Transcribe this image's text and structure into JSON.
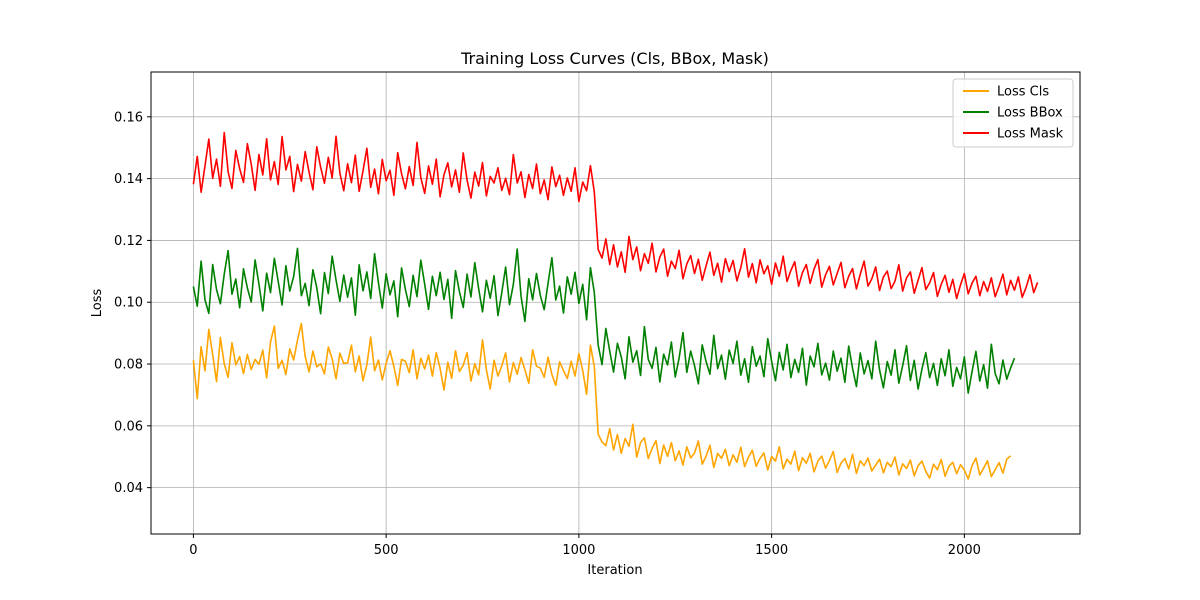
{
  "chart_data": {
    "type": "line",
    "title": "Training Loss Curves (Cls, BBox, Mask)",
    "xlabel": "Iteration",
    "ylabel": "Loss",
    "xlim": [
      -110,
      2300
    ],
    "ylim": [
      0.025,
      0.1745
    ],
    "xticks": [
      0,
      500,
      1000,
      1500,
      2000
    ],
    "yticks": [
      0.04,
      0.06,
      0.08,
      0.1,
      0.12,
      0.14,
      0.16
    ],
    "ytick_labels": [
      "0.04",
      "0.06",
      "0.08",
      "0.10",
      "0.12",
      "0.14",
      "0.16"
    ],
    "grid": true,
    "legend_position": "top-right",
    "x_step": 10,
    "series": [
      {
        "name": "Loss Cls",
        "color": "#ffa500",
        "values": [
          0.0812,
          0.0688,
          0.0856,
          0.0778,
          0.0912,
          0.0831,
          0.0743,
          0.0886,
          0.0801,
          0.0757,
          0.0869,
          0.0797,
          0.0824,
          0.0769,
          0.0831,
          0.0782,
          0.0815,
          0.0799,
          0.0845,
          0.0755,
          0.0871,
          0.0923,
          0.0786,
          0.0812,
          0.0766,
          0.0849,
          0.0813,
          0.0877,
          0.0931,
          0.0824,
          0.0775,
          0.0842,
          0.0791,
          0.0801,
          0.0768,
          0.0855,
          0.0817,
          0.0752,
          0.0835,
          0.0802,
          0.0804,
          0.0861,
          0.0775,
          0.0826,
          0.0746,
          0.0798,
          0.0887,
          0.0778,
          0.0813,
          0.0749,
          0.0802,
          0.0843,
          0.0792,
          0.0731,
          0.0815,
          0.0809,
          0.0772,
          0.0846,
          0.0752,
          0.0819,
          0.0784,
          0.0829,
          0.0761,
          0.0837,
          0.0786,
          0.0716,
          0.0806,
          0.0754,
          0.0843,
          0.0776,
          0.0796,
          0.0837,
          0.0745,
          0.0801,
          0.0765,
          0.0878,
          0.0782,
          0.0719,
          0.0812,
          0.0761,
          0.0794,
          0.0836,
          0.0742,
          0.0805,
          0.0767,
          0.0821,
          0.0781,
          0.0738,
          0.0846,
          0.0793,
          0.0787,
          0.0757,
          0.0822,
          0.0766,
          0.0731,
          0.0807,
          0.0779,
          0.0753,
          0.0809,
          0.0761,
          0.0834,
          0.0779,
          0.0702,
          0.0861,
          0.0792,
          0.0573,
          0.0548,
          0.0536,
          0.0591,
          0.0522,
          0.0572,
          0.0511,
          0.0559,
          0.0534,
          0.0605,
          0.0499,
          0.0546,
          0.0561,
          0.0494,
          0.0527,
          0.0552,
          0.0478,
          0.0538,
          0.0501,
          0.0546,
          0.0487,
          0.0519,
          0.0473,
          0.0532,
          0.0496,
          0.0512,
          0.0551,
          0.0476,
          0.0502,
          0.0537,
          0.0465,
          0.0511,
          0.0495,
          0.0524,
          0.0471,
          0.0506,
          0.0482,
          0.0531,
          0.0468,
          0.0499,
          0.0521,
          0.0469,
          0.0495,
          0.0512,
          0.0457,
          0.0501,
          0.0486,
          0.0532,
          0.0461,
          0.0492,
          0.0476,
          0.0518,
          0.0455,
          0.0497,
          0.0479,
          0.0511,
          0.0451,
          0.0486,
          0.0502,
          0.0463,
          0.0488,
          0.0517,
          0.0449,
          0.0479,
          0.0494,
          0.0461,
          0.0508,
          0.0446,
          0.0487,
          0.0471,
          0.0496,
          0.0454,
          0.0473,
          0.0492,
          0.0448,
          0.0482,
          0.0468,
          0.0499,
          0.0441,
          0.0477,
          0.0462,
          0.0489,
          0.0438,
          0.0471,
          0.0486,
          0.0452,
          0.0431,
          0.0476,
          0.0458,
          0.0491,
          0.0437,
          0.0469,
          0.0482,
          0.0445,
          0.0474,
          0.0457,
          0.0428,
          0.0471,
          0.0496,
          0.0441,
          0.0463,
          0.0487,
          0.0436,
          0.0458,
          0.0481,
          0.0447,
          0.0492,
          0.0503
        ]
      },
      {
        "name": "Loss BBox",
        "color": "#008000",
        "values": [
          0.1051,
          0.0987,
          0.1133,
          0.1008,
          0.0964,
          0.1122,
          0.1041,
          0.0995,
          0.1091,
          0.1167,
          0.1026,
          0.1075,
          0.0982,
          0.1108,
          0.1046,
          0.1001,
          0.1137,
          0.1059,
          0.0972,
          0.1094,
          0.1031,
          0.1142,
          0.1067,
          0.0991,
          0.1118,
          0.1036,
          0.1083,
          0.1174,
          0.1021,
          0.1061,
          0.0989,
          0.1105,
          0.1047,
          0.0963,
          0.1096,
          0.1028,
          0.1149,
          0.1072,
          0.1003,
          0.1088,
          0.1016,
          0.1079,
          0.0958,
          0.1121,
          0.1037,
          0.1098,
          0.1012,
          0.1157,
          0.1063,
          0.0981,
          0.1092,
          0.1024,
          0.1069,
          0.0953,
          0.1111,
          0.1041,
          0.0986,
          0.1087,
          0.1018,
          0.1136,
          0.1058,
          0.0977,
          0.1084,
          0.1021,
          0.1097,
          0.1009,
          0.1074,
          0.0948,
          0.1102,
          0.1035,
          0.0983,
          0.1091,
          0.1017,
          0.1128,
          0.1044,
          0.0969,
          0.1071,
          0.1013,
          0.1086,
          0.0957,
          0.1031,
          0.1114,
          0.0992,
          0.1058,
          0.1172,
          0.1019,
          0.0938,
          0.1076,
          0.1008,
          0.1093,
          0.1022,
          0.0976,
          0.1061,
          0.1144,
          0.1007,
          0.1052,
          0.0965,
          0.1082,
          0.1026,
          0.1097,
          0.0996,
          0.1058,
          0.0943,
          0.1112,
          0.1031,
          0.0862,
          0.0798,
          0.0915,
          0.0842,
          0.0774,
          0.0867,
          0.0823,
          0.0752,
          0.0888,
          0.0806,
          0.0843,
          0.0763,
          0.0921,
          0.0815,
          0.0786,
          0.0854,
          0.0742,
          0.0832,
          0.0797,
          0.0871,
          0.0758,
          0.0819,
          0.0902,
          0.0773,
          0.0842,
          0.0795,
          0.0736,
          0.0862,
          0.0808,
          0.0767,
          0.0893,
          0.0785,
          0.0829,
          0.0751,
          0.0845,
          0.0802,
          0.0874,
          0.0764,
          0.0817,
          0.0741,
          0.0856,
          0.0793,
          0.0826,
          0.0759,
          0.0882,
          0.0809,
          0.0746,
          0.0838,
          0.0781,
          0.0864,
          0.0756,
          0.0815,
          0.0773,
          0.0851,
          0.0732,
          0.0826,
          0.0791,
          0.0867,
          0.0765,
          0.0803,
          0.0748,
          0.0842,
          0.0777,
          0.0819,
          0.0741,
          0.0858,
          0.0786,
          0.0727,
          0.0836,
          0.0768,
          0.0811,
          0.0752,
          0.0874,
          0.0781,
          0.0723,
          0.0808,
          0.0764,
          0.0846,
          0.0738,
          0.0795,
          0.0859,
          0.0747,
          0.0812,
          0.0719,
          0.0784,
          0.0837,
          0.0756,
          0.0802,
          0.0731,
          0.0817,
          0.0762,
          0.0846,
          0.0728,
          0.0789,
          0.0752,
          0.0823,
          0.0706,
          0.0776,
          0.0841,
          0.0745,
          0.0798,
          0.0722,
          0.0864,
          0.0769,
          0.0736,
          0.0813,
          0.0751,
          0.0787,
          0.0819
        ]
      },
      {
        "name": "Loss Mask",
        "color": "#ff0000",
        "values": [
          0.1382,
          0.1472,
          0.1356,
          0.1441,
          0.1528,
          0.1401,
          0.1463,
          0.1375,
          0.1549,
          0.1423,
          0.1368,
          0.1491,
          0.1432,
          0.1388,
          0.1513,
          0.1447,
          0.1362,
          0.1478,
          0.1412,
          0.1529,
          0.1396,
          0.1455,
          0.1381,
          0.1536,
          0.1428,
          0.1472,
          0.1358,
          0.1446,
          0.1392,
          0.1487,
          0.1421,
          0.1364,
          0.1503,
          0.1437,
          0.1385,
          0.1469,
          0.1402,
          0.1537,
          0.1418,
          0.1361,
          0.1448,
          0.1387,
          0.1476,
          0.1359,
          0.1425,
          0.1498,
          0.1372,
          0.1431,
          0.1351,
          0.1462,
          0.1393,
          0.1427,
          0.1346,
          0.1484,
          0.1416,
          0.1367,
          0.1439,
          0.1378,
          0.1517,
          0.1403,
          0.1352,
          0.1441,
          0.1382,
          0.1463,
          0.1341,
          0.1412,
          0.1451,
          0.1373,
          0.1428,
          0.1356,
          0.1483,
          0.1395,
          0.1337,
          0.1421,
          0.1376,
          0.1452,
          0.1344,
          0.1407,
          0.1386,
          0.1435,
          0.1362,
          0.1401,
          0.1348,
          0.1478,
          0.1386,
          0.1422,
          0.1339,
          0.1413,
          0.1368,
          0.1447,
          0.1351,
          0.1396,
          0.1332,
          0.1438,
          0.1374,
          0.1411,
          0.1346,
          0.1402,
          0.1359,
          0.1435,
          0.1326,
          0.1389,
          0.1361,
          0.1442,
          0.1357,
          0.1171,
          0.1143,
          0.1205,
          0.1122,
          0.1186,
          0.1114,
          0.1163,
          0.1097,
          0.1213,
          0.1138,
          0.1179,
          0.1102,
          0.1157,
          0.1126,
          0.1191,
          0.1098,
          0.1146,
          0.1172,
          0.1084,
          0.1133,
          0.1109,
          0.1168,
          0.1076,
          0.1124,
          0.1151,
          0.1093,
          0.1139,
          0.1071,
          0.1118,
          0.1162,
          0.1087,
          0.1126,
          0.1065,
          0.1141,
          0.1099,
          0.1135,
          0.1069,
          0.1112,
          0.1173,
          0.1081,
          0.1125,
          0.1063,
          0.1137,
          0.1092,
          0.1118,
          0.1058,
          0.1127,
          0.1084,
          0.1149,
          0.1067,
          0.1103,
          0.1131,
          0.1052,
          0.1096,
          0.1122,
          0.1061,
          0.1107,
          0.1138,
          0.1049,
          0.1089,
          0.1116,
          0.1056,
          0.1093,
          0.1129,
          0.1047,
          0.1084,
          0.1109,
          0.1043,
          0.1091,
          0.1133,
          0.1052,
          0.1076,
          0.1114,
          0.1038,
          0.1082,
          0.1101,
          0.1044,
          0.1068,
          0.1121,
          0.1036,
          0.1079,
          0.1098,
          0.1029,
          0.1071,
          0.1112,
          0.1041,
          0.1063,
          0.1096,
          0.1019,
          0.1058,
          0.1087,
          0.1032,
          0.1074,
          0.1012,
          0.1056,
          0.1093,
          0.1027,
          0.1062,
          0.1084,
          0.1021,
          0.1067,
          0.1035,
          0.1079,
          0.1018,
          0.1052,
          0.1091,
          0.1024,
          0.1071,
          0.1039,
          0.1082,
          0.1016,
          0.1047,
          0.1089,
          0.1031,
          0.1064
        ]
      }
    ]
  }
}
